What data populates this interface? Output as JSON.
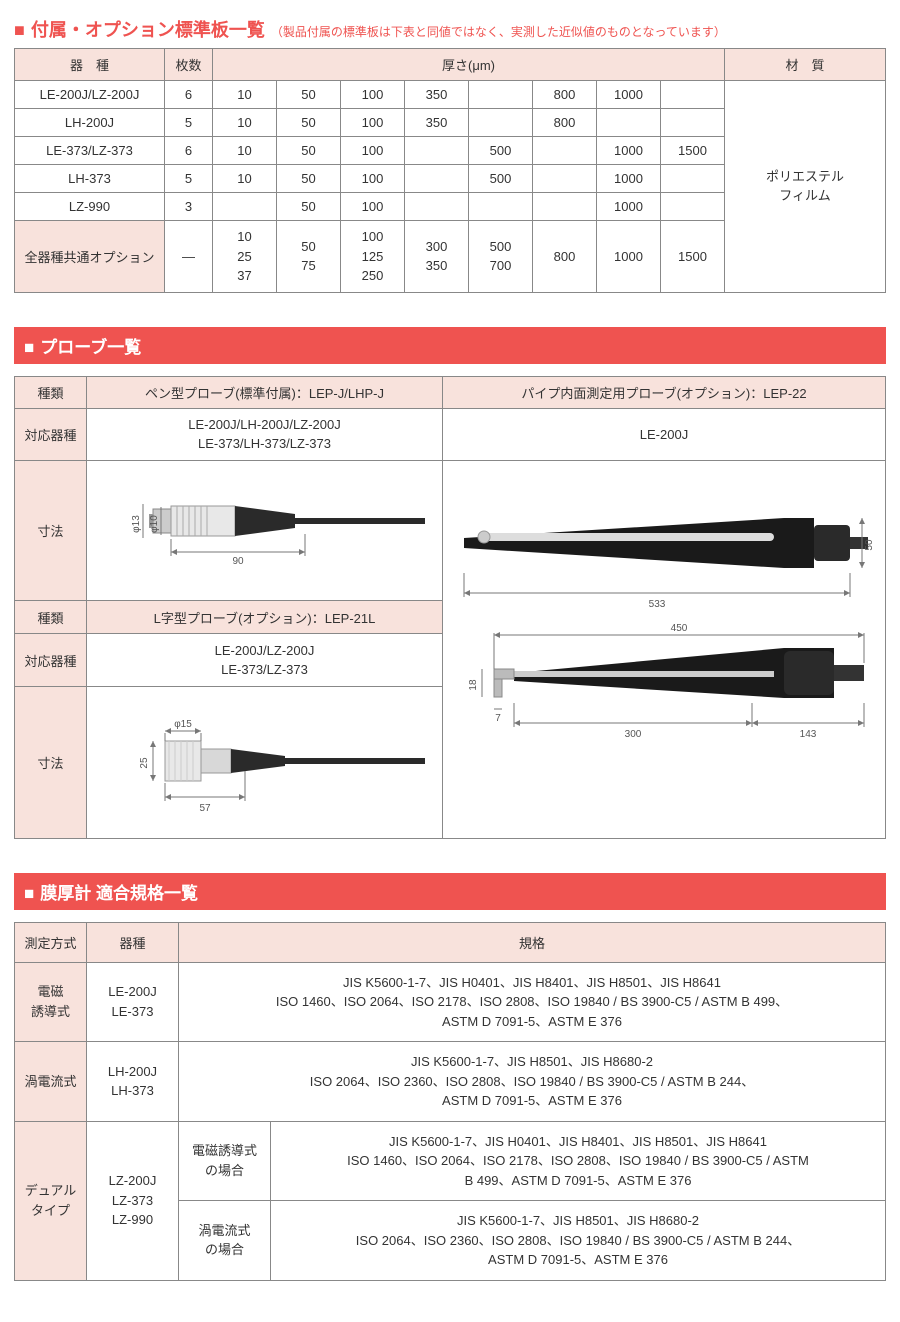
{
  "section1": {
    "title": "付属・オプション標準板一覧",
    "note": "（製品付属の標準板は下表と同値ではなく、実測した近似値のものとなっています）",
    "headers": {
      "model": "器　種",
      "qty": "枚数",
      "thickness": "厚さ(μm)",
      "material": "材　質"
    },
    "material": "ポリエステル\nフィルム",
    "rows": [
      {
        "model": "LE-200J/LZ-200J",
        "qty": "6",
        "t": [
          "10",
          "50",
          "100",
          "350",
          "",
          "800",
          "1000",
          ""
        ]
      },
      {
        "model": "LH-200J",
        "qty": "5",
        "t": [
          "10",
          "50",
          "100",
          "350",
          "",
          "800",
          "",
          ""
        ]
      },
      {
        "model": "LE-373/LZ-373",
        "qty": "6",
        "t": [
          "10",
          "50",
          "100",
          "",
          "500",
          "",
          "1000",
          "1500"
        ]
      },
      {
        "model": "LH-373",
        "qty": "5",
        "t": [
          "10",
          "50",
          "100",
          "",
          "500",
          "",
          "1000",
          ""
        ]
      },
      {
        "model": "LZ-990",
        "qty": "3",
        "t": [
          "",
          "50",
          "100",
          "",
          "",
          "",
          "1000",
          ""
        ]
      }
    ],
    "option_label": "全器種共通オプション",
    "option_qty": "—",
    "option_t": [
      "10\n25\n37",
      "50\n75",
      "100\n125\n250",
      "300\n350",
      "500\n700",
      "800",
      "1000",
      "1500"
    ]
  },
  "section2": {
    "title": "プローブ一覧",
    "labels": {
      "type": "種類",
      "compat": "対応器種",
      "dim": "寸法"
    },
    "pen": {
      "header": "ペン型プローブ(標準付属)：LEP-J/LHP-J",
      "compat": "LE-200J/LH-200J/LZ-200J\nLE-373/LH-373/LZ-373",
      "dims": {
        "d1": "φ13",
        "d2": "φ10",
        "len": "90"
      }
    },
    "lshape": {
      "header": "L字型プローブ(オプション)：LEP-21L",
      "compat": "LE-200J/LZ-200J\nLE-373/LZ-373",
      "dims": {
        "dia": "φ15",
        "h": "25",
        "len": "57"
      }
    },
    "pipe": {
      "header": "パイプ内面測定用プローブ(オプション)：LEP-22",
      "compat": "LE-200J",
      "dims": {
        "w1": "533",
        "h1": "50",
        "w2": "450",
        "w3": "300",
        "w4": "143",
        "h2": "18",
        "w5": "7"
      }
    }
  },
  "section3": {
    "title": "膜厚計 適合規格一覧",
    "headers": {
      "method": "測定方式",
      "model": "器種",
      "std": "規格"
    },
    "rows": [
      {
        "method": "電磁\n誘導式",
        "model": "LE-200J\nLE-373",
        "std": "JIS K5600-1-7、JIS H0401、JIS H8401、JIS H8501、JIS H8641\nISO 1460、ISO 2064、ISO 2178、ISO 2808、ISO 19840 / BS 3900-C5 / ASTM B 499、\nASTM D 7091-5、ASTM E 376"
      },
      {
        "method": "渦電流式",
        "model": "LH-200J\nLH-373",
        "std": "JIS K5600-1-7、JIS H8501、JIS H8680-2\nISO 2064、ISO 2360、ISO 2808、ISO 19840 / BS 3900-C5 / ASTM B 244、\nASTM D 7091-5、ASTM E 376"
      }
    ],
    "dual": {
      "method": "デュアル\nタイプ",
      "model": "LZ-200J\nLZ-373\nLZ-990",
      "sub1_label": "電磁誘導式\nの場合",
      "sub1_std": "JIS K5600-1-7、JIS H0401、JIS H8401、JIS H8501、JIS H8641\nISO 1460、ISO 2064、ISO 2178、ISO 2808、ISO 19840 / BS 3900-C5 / ASTM\nB 499、ASTM D 7091-5、ASTM E 376",
      "sub2_label": "渦電流式\nの場合",
      "sub2_std": "JIS K5600-1-7、JIS H8501、JIS H8680-2\nISO 2064、ISO 2360、ISO 2808、ISO 19840 / BS 3900-C5 / ASTM B 244、\nASTM D 7091-5、ASTM E 376"
    }
  }
}
